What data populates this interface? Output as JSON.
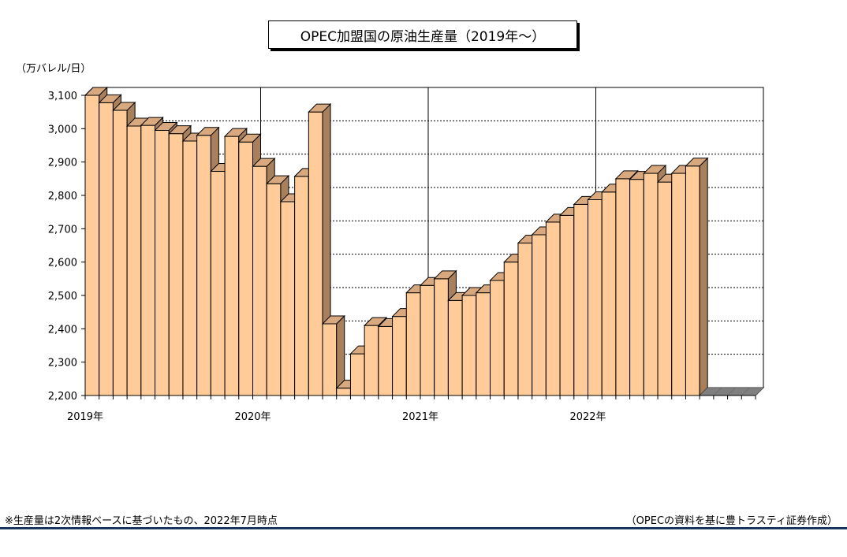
{
  "chart_data": {
    "type": "bar",
    "title": "OPEC加盟国の原油生産量（2019年～）",
    "ylabel": "（万バレル/日）",
    "ylim": [
      2200,
      3100
    ],
    "yticks": [
      "2,200",
      "2,300",
      "2,400",
      "2,500",
      "2,600",
      "2,700",
      "2,800",
      "2,900",
      "3,000",
      "3,100"
    ],
    "ytick_values": [
      2200,
      2300,
      2400,
      2500,
      2600,
      2700,
      2800,
      2900,
      3000,
      3100
    ],
    "xtick_labels": [
      "2019年",
      "2020年",
      "2021年",
      "2022年"
    ],
    "categories": [
      "2019-01",
      "2019-02",
      "2019-03",
      "2019-04",
      "2019-05",
      "2019-06",
      "2019-07",
      "2019-08",
      "2019-09",
      "2019-10",
      "2019-11",
      "2019-12",
      "2020-01",
      "2020-02",
      "2020-03",
      "2020-04",
      "2020-05",
      "2020-06",
      "2020-07",
      "2020-08",
      "2020-09",
      "2020-10",
      "2020-11",
      "2020-12",
      "2021-01",
      "2021-02",
      "2021-03",
      "2021-04",
      "2021-05",
      "2021-06",
      "2021-07",
      "2021-08",
      "2021-09",
      "2021-10",
      "2021-11",
      "2021-12",
      "2022-01",
      "2022-02",
      "2022-03",
      "2022-04",
      "2022-05",
      "2022-06",
      "2022-07",
      "2022-08",
      "2022-09",
      "2022-10",
      "2022-11",
      "2022-12"
    ],
    "values": [
      3100,
      3078,
      3055,
      3008,
      3010,
      2995,
      2985,
      2963,
      2980,
      2872,
      2977,
      2960,
      2887,
      2835,
      2781,
      2857,
      3050,
      2415,
      2222,
      2325,
      2410,
      2407,
      2437,
      2508,
      2530,
      2550,
      2485,
      2500,
      2508,
      2545,
      2600,
      2657,
      2682,
      2720,
      2740,
      2773,
      2787,
      2810,
      2850,
      2848,
      2866,
      2840,
      2866,
      2888,
      null,
      null,
      null,
      null
    ],
    "grid": true,
    "bar_color": "#ffcc99",
    "bar_side_color": "#a8815c",
    "bar_top_color": "#d8a97e",
    "floor_color": "#7f7f7f"
  },
  "notes": {
    "left": "※生産量は2次情報ベースに基づいたもの、2022年7月時点",
    "right": "（OPECの資料を基に豊トラスティ証券作成）"
  }
}
